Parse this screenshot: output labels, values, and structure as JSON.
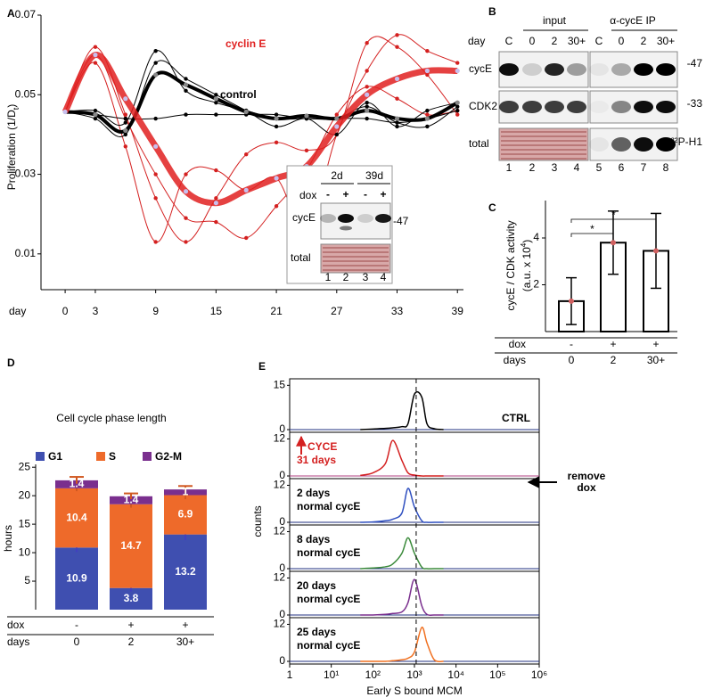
{
  "panel_labels": [
    "A",
    "B",
    "C",
    "D",
    "E"
  ],
  "chart_data": [
    {
      "type": "line",
      "ylabel": [
        "Proliferation (1/D",
        "t",
        ")"
      ],
      "xlabel": "day",
      "x": [
        0,
        3,
        6,
        9,
        12,
        15,
        18,
        21,
        24,
        27,
        30,
        33,
        36,
        39
      ],
      "xlim": [
        -2.4,
        39.6
      ],
      "xticks": [
        0,
        3,
        9,
        15,
        21,
        27,
        33,
        39
      ],
      "ylim": [
        0.001,
        0.07
      ],
      "yticks": [
        0.01,
        0.03,
        0.05,
        0.07
      ],
      "series": [
        {
          "color": "#d42020",
          "width": 1,
          "values": [
            0.0457,
            0.062,
            0.045,
            0.024,
            0.013,
            0.024,
            0.035,
            0.038,
            0.036,
            0.04,
            0.063,
            0.062,
            0.055,
            0.045
          ]
        },
        {
          "color": "#d42020",
          "width": 1,
          "values": [
            0.0457,
            0.06,
            0.044,
            0.03,
            0.019,
            0.018,
            0.014,
            0.022,
            0.031,
            0.045,
            0.052,
            0.049,
            0.045,
            0.046
          ]
        },
        {
          "color": "#d42020",
          "width": 1,
          "values": [
            0.0457,
            0.058,
            0.037,
            0.013,
            0.03,
            0.031,
            0.026,
            0.029,
            0.016,
            0.04,
            0.056,
            0.065,
            0.061,
            0.058
          ]
        },
        {
          "color": "#000000",
          "width": 1,
          "values": [
            0.0457,
            0.046,
            0.043,
            0.061,
            0.051,
            0.048,
            0.046,
            0.044,
            0.044,
            0.044,
            0.047,
            0.043,
            0.042,
            0.047
          ]
        },
        {
          "color": "#000000",
          "width": 1,
          "values": [
            0.0457,
            0.045,
            0.044,
            0.044,
            0.045,
            0.045,
            0.045,
            0.045,
            0.044,
            0.044,
            0.044,
            0.043,
            0.044,
            0.046
          ]
        },
        {
          "color": "#000000",
          "width": 1,
          "values": [
            0.0457,
            0.044,
            0.04,
            0.058,
            0.054,
            0.05,
            0.046,
            0.042,
            0.044,
            0.04,
            0.048,
            0.042,
            0.046,
            0.048
          ]
        },
        {
          "name": "control",
          "color": "#000000",
          "width": 4,
          "values": [
            0.0457,
            0.045,
            0.041,
            0.055,
            0.0525,
            0.049,
            0.0457,
            0.044,
            0.0447,
            0.044,
            0.046,
            0.044,
            0.044,
            0.048
          ]
        },
        {
          "name": "cyclin E",
          "color": "#e02020",
          "width": 7,
          "values": [
            0.0457,
            0.06,
            0.049,
            0.037,
            0.0257,
            0.0228,
            0.026,
            0.029,
            0.032,
            0.042,
            0.05,
            0.054,
            0.056,
            0.056
          ]
        }
      ],
      "inset": {
        "columns": [
          "2d",
          "39d"
        ],
        "dox_label": "dox",
        "dox": [
          "-",
          "+",
          "-",
          "+"
        ],
        "rows": [
          "cycE",
          "total"
        ],
        "marker": "-47",
        "lanes": [
          "1",
          "2",
          "3",
          "4"
        ]
      }
    },
    {
      "type": "bar",
      "ylabel": [
        "cycE / CDK activity",
        "(a.u. x 10",
        "4",
        ")"
      ],
      "categories": [
        "0",
        "2",
        "30+"
      ],
      "row_labels": [
        "dox",
        "days"
      ],
      "dox": [
        "-",
        "+",
        "+"
      ],
      "values": [
        1.3,
        3.8,
        3.45
      ],
      "errors": [
        1.0,
        1.35,
        1.6
      ],
      "ylim": [
        0,
        5.6
      ],
      "yticks": [
        2,
        4
      ],
      "color": "#ffffff",
      "significance": [
        {
          "pair": [
            "0",
            "2"
          ],
          "label": "*"
        },
        {
          "pair": [
            "0",
            "30+"
          ],
          "label": "*"
        }
      ]
    },
    {
      "type": "bar",
      "stacked": true,
      "title": "Cell cycle phase length",
      "ylabel": "hours",
      "categories": [
        "0",
        "2",
        "30+"
      ],
      "row_labels": [
        "dox",
        "days"
      ],
      "dox": [
        "-",
        "+",
        "+"
      ],
      "ylim": [
        0,
        25.5
      ],
      "yticks": [
        5,
        10,
        15,
        20,
        25
      ],
      "series": [
        {
          "name": "G1",
          "color": "#3f4fb0",
          "values": [
            10.9,
            3.8,
            13.2
          ],
          "errors": [
            0.8,
            0.6,
            1.0
          ]
        },
        {
          "name": "S",
          "color": "#ee6a2a",
          "values": [
            10.4,
            14.7,
            6.9
          ],
          "errors": [
            0.5,
            0.6,
            0.7
          ]
        },
        {
          "name": "G2-M",
          "color": "#7a2f8e",
          "values": [
            1.4,
            1.4,
            1.0
          ],
          "errors": [
            0.6,
            0.5,
            0.6
          ]
        }
      ]
    },
    {
      "type": "line",
      "log_x": true,
      "xlabel": "Early S bound MCM",
      "ylabel": "counts",
      "x": [
        50,
        100,
        200,
        300,
        500,
        700,
        1000,
        1500,
        2000,
        3000,
        5000
      ],
      "xlim": [
        1,
        1000000
      ],
      "xticks": [
        {
          "value": 1,
          "label": "1"
        },
        {
          "value": 10,
          "label": "10¹"
        },
        {
          "value": 100,
          "label": "10²"
        },
        {
          "value": 1000,
          "label": "10³"
        },
        {
          "value": 10000,
          "label": "10⁴"
        },
        {
          "value": 100000,
          "label": "10⁵"
        },
        {
          "value": 1000000,
          "label": "10⁶"
        }
      ],
      "reference_x": 1100,
      "annotation": [
        "remove",
        "dox"
      ],
      "series": [
        {
          "label": [
            "CTRL"
          ],
          "color": "#000000",
          "ylim": [
            0,
            16
          ],
          "yticks": [
            0,
            15
          ],
          "values": [
            0,
            0.2,
            0.4,
            0.6,
            1,
            2,
            12,
            11,
            2,
            0.3,
            0
          ]
        },
        {
          "label": [
            "CYCE",
            "31 days"
          ],
          "color": "#d42020",
          "ylim": [
            0,
            13
          ],
          "yticks": [
            0,
            12
          ],
          "values": [
            0.2,
            1,
            4,
            11.5,
            5,
            1,
            0.3,
            0,
            0,
            0,
            0
          ]
        },
        {
          "label": [
            "2 days",
            "normal cycE"
          ],
          "color": "#3050c0",
          "ylim": [
            0,
            13
          ],
          "yticks": [
            0,
            12
          ],
          "values": [
            0,
            0.1,
            0.5,
            1,
            3,
            11,
            5,
            0.5,
            0,
            0,
            0
          ]
        },
        {
          "label": [
            "8 days",
            "normal cycE"
          ],
          "color": "#3a8a3a",
          "ylim": [
            0,
            13
          ],
          "yticks": [
            0,
            12
          ],
          "values": [
            0,
            0.2,
            0.6,
            1.5,
            5,
            10,
            5,
            0.5,
            0,
            0,
            0
          ]
        },
        {
          "label": [
            "20 days",
            "normal cycE"
          ],
          "color": "#7a2f8e",
          "ylim": [
            0,
            13
          ],
          "yticks": [
            0,
            12
          ],
          "values": [
            0,
            0,
            0.2,
            0.5,
            1,
            4,
            11.5,
            3,
            0.2,
            0,
            0
          ]
        },
        {
          "label": [
            "25 days",
            "normal cycE"
          ],
          "color": "#f07020",
          "ylim": [
            0,
            13
          ],
          "yticks": [
            0,
            12
          ],
          "values": [
            0,
            0,
            0,
            0.2,
            0.5,
            1,
            3,
            11,
            6,
            0.5,
            0
          ]
        }
      ]
    }
  ],
  "blots": {
    "groups": [
      "input",
      "α-cycE IP"
    ],
    "day_label": "day",
    "days": [
      "C",
      "0",
      "2",
      "30+",
      "C",
      "0",
      "2",
      "30+"
    ],
    "rows": [
      "cycE",
      "CDK2",
      "total"
    ],
    "markers": [
      "-47",
      "-33",
      "³²P-H1"
    ],
    "lanes": [
      "1",
      "2",
      "3",
      "4",
      "5",
      "6",
      "7",
      "8"
    ]
  }
}
